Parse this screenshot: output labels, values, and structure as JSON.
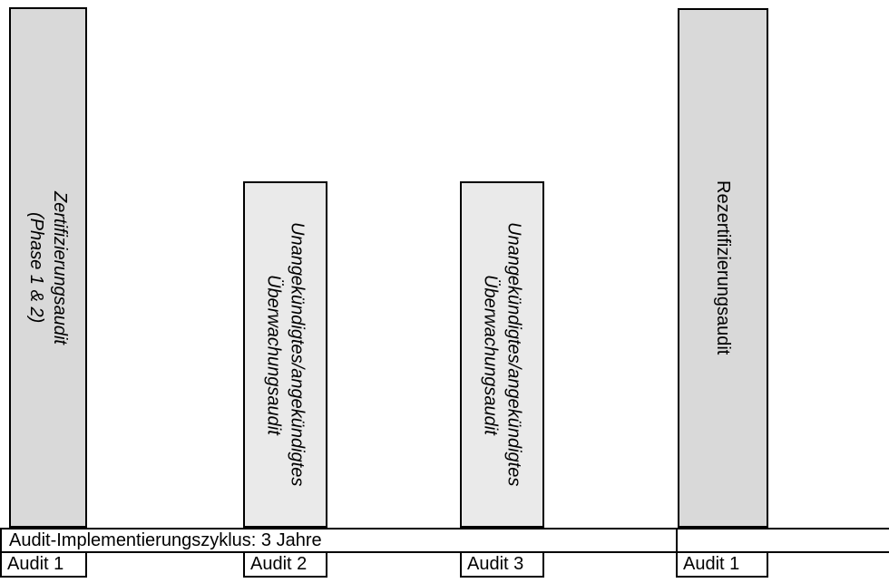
{
  "diagram": {
    "bars": [
      {
        "line1": "Zertifizierungsaudit",
        "line2": "(Phase 1 & 2)",
        "style": "dark",
        "italic": true
      },
      {
        "line1": "Unangekündigtes/angekündigtes",
        "line2": "Überwachungsaudit",
        "style": "light",
        "italic": true
      },
      {
        "line1": "Unangekündigtes/angekündigtes",
        "line2": "Überwachungsaudit",
        "style": "light",
        "italic": true
      },
      {
        "line1": "Rezertifizierungsaudit",
        "line2": "",
        "style": "dark",
        "italic": false
      }
    ],
    "cycle_band": {
      "label": "Audit-Implementierungszyklus: 3 Jahre"
    },
    "audit_markers": [
      "Audit 1",
      "Audit 2",
      "Audit 3",
      "Audit 1"
    ],
    "colors": {
      "bar_dark_fill": "#d9d9d9",
      "bar_light_fill": "#eaeaea",
      "line": "#000000",
      "background": "#ffffff"
    }
  }
}
